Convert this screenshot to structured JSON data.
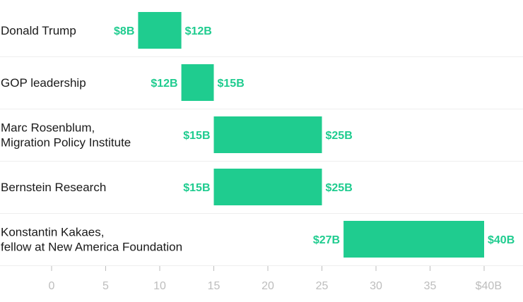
{
  "chart_data": {
    "type": "range-bar",
    "title": "",
    "xlabel": "",
    "ylabel": "",
    "xlim": [
      0,
      40
    ],
    "x_ticks": [
      "0",
      "5",
      "10",
      "15",
      "20",
      "25",
      "30",
      "35",
      "$40B"
    ],
    "x_tick_values": [
      0,
      5,
      10,
      15,
      20,
      25,
      30,
      35,
      40
    ],
    "grid": false,
    "bar_color": "#1fcc8f",
    "tick_color": "#bdbdbd",
    "separator_color": "#eeeeee",
    "categories": [
      {
        "lines": [
          "Donald Trump"
        ],
        "low": 8,
        "high": 12,
        "low_label": "$8B",
        "high_label": "$12B"
      },
      {
        "lines": [
          "GOP leadership"
        ],
        "low": 12,
        "high": 15,
        "low_label": "$12B",
        "high_label": "$15B"
      },
      {
        "lines": [
          "Marc Rosenblum,",
          "Migration Policy Institute"
        ],
        "low": 15,
        "high": 25,
        "low_label": "$15B",
        "high_label": "$25B"
      },
      {
        "lines": [
          "Bernstein Research"
        ],
        "low": 15,
        "high": 25,
        "low_label": "$15B",
        "high_label": "$25B"
      },
      {
        "lines": [
          "Konstantin Kakaes,",
          "fellow at New America Foundation"
        ],
        "low": 27,
        "high": 40,
        "low_label": "$27B",
        "high_label": "$40B"
      }
    ]
  }
}
